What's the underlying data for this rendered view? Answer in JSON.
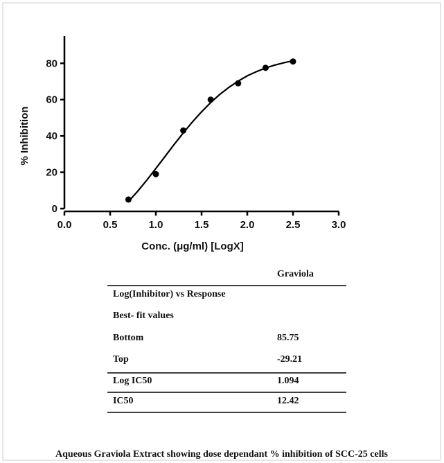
{
  "chart_data": {
    "type": "scatter",
    "x_label": "Conc. (μg/ml) [LogX]",
    "y_label": "% Inhibition",
    "xlim": [
      0,
      3
    ],
    "ylim": [
      0,
      95
    ],
    "xticks": [
      {
        "value": 0,
        "label": "0.0"
      },
      0.5,
      {
        "value": 1,
        "label": "1.0"
      },
      1.5,
      {
        "value": 2,
        "label": "2.0"
      },
      2.5,
      {
        "value": 3,
        "label": "3.0"
      }
    ],
    "yticks": [
      0,
      20,
      40,
      60,
      80
    ],
    "series": [
      {
        "style": "points",
        "color": "#000000",
        "x": [
          0.7,
          1.0,
          1.3,
          1.6,
          1.9,
          2.2,
          2.5
        ],
        "values": [
          5,
          19,
          43,
          60,
          69,
          77.5,
          81
        ]
      },
      {
        "style": "line",
        "color": "#000000",
        "x": [
          0.7,
          0.8,
          0.9,
          1.0,
          1.1,
          1.2,
          1.3,
          1.4,
          1.5,
          1.6,
          1.7,
          1.8,
          1.9,
          2.0,
          2.1,
          2.2,
          2.3,
          2.4,
          2.5
        ],
        "values": [
          3.9,
          9.5,
          15.6,
          22.1,
          28.7,
          35.3,
          41.7,
          47.7,
          53.3,
          58.4,
          62.9,
          66.8,
          70.2,
          73.1,
          75.4,
          77.4,
          79.0,
          80.3,
          81.4
        ]
      }
    ]
  },
  "table": {
    "column_header": "Graviola",
    "rows": [
      [
        "Log(Inhibitor) vs Response"
      ],
      [
        "Best- fit values"
      ],
      [
        "Bottom",
        "85.75"
      ],
      [
        "Top",
        "-29.21"
      ],
      [
        "Log IC50",
        "1.094"
      ],
      [
        "IC50",
        "12.42"
      ]
    ]
  },
  "caption": "Aqueous Graviola Extract showing dose dependant % inhibition of SCC-25 cells"
}
